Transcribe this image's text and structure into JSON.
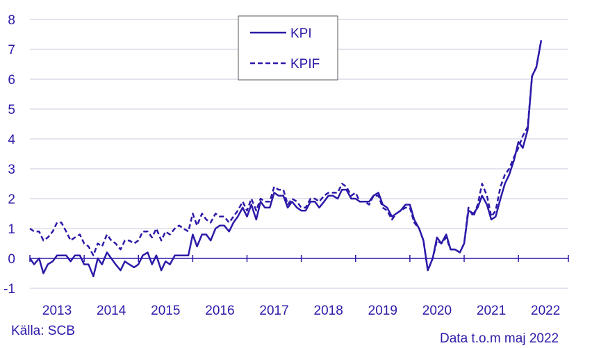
{
  "chart_data": {
    "type": "line",
    "title": "",
    "xlabel": "",
    "ylabel": "",
    "ylim": [
      -1,
      8
    ],
    "y_ticks": [
      -1,
      0,
      1,
      2,
      3,
      4,
      5,
      6,
      7,
      8
    ],
    "x_range": [
      2013,
      2022.92
    ],
    "x_ticks": [
      "2013",
      "2014",
      "2015",
      "2016",
      "2017",
      "2018",
      "2019",
      "2020",
      "2021",
      "2022"
    ],
    "grid": true,
    "legend_position": "top-center",
    "series": [
      {
        "name": "KPI",
        "style": "solid",
        "color": "#2b1aa8",
        "points": [
          [
            2013.0,
            0.0
          ],
          [
            2013.08,
            -0.2
          ],
          [
            2013.17,
            0.0
          ],
          [
            2013.25,
            -0.5
          ],
          [
            2013.33,
            -0.2
          ],
          [
            2013.42,
            -0.1
          ],
          [
            2013.5,
            0.1
          ],
          [
            2013.58,
            0.1
          ],
          [
            2013.67,
            0.1
          ],
          [
            2013.75,
            -0.1
          ],
          [
            2013.83,
            0.1
          ],
          [
            2013.92,
            0.1
          ],
          [
            2014.0,
            -0.2
          ],
          [
            2014.08,
            -0.2
          ],
          [
            2014.17,
            -0.6
          ],
          [
            2014.25,
            0.0
          ],
          [
            2014.33,
            -0.2
          ],
          [
            2014.42,
            0.2
          ],
          [
            2014.5,
            0.0
          ],
          [
            2014.58,
            -0.2
          ],
          [
            2014.67,
            -0.4
          ],
          [
            2014.75,
            -0.1
          ],
          [
            2014.83,
            -0.2
          ],
          [
            2014.92,
            -0.3
          ],
          [
            2015.0,
            -0.2
          ],
          [
            2015.08,
            0.1
          ],
          [
            2015.17,
            0.2
          ],
          [
            2015.25,
            -0.2
          ],
          [
            2015.33,
            0.1
          ],
          [
            2015.42,
            -0.4
          ],
          [
            2015.5,
            -0.1
          ],
          [
            2015.58,
            -0.2
          ],
          [
            2015.67,
            0.1
          ],
          [
            2015.75,
            0.1
          ],
          [
            2015.83,
            0.1
          ],
          [
            2015.92,
            0.1
          ],
          [
            2016.0,
            0.8
          ],
          [
            2016.08,
            0.4
          ],
          [
            2016.17,
            0.8
          ],
          [
            2016.25,
            0.8
          ],
          [
            2016.33,
            0.6
          ],
          [
            2016.42,
            1.0
          ],
          [
            2016.5,
            1.1
          ],
          [
            2016.58,
            1.1
          ],
          [
            2016.67,
            0.9
          ],
          [
            2016.75,
            1.2
          ],
          [
            2016.83,
            1.4
          ],
          [
            2016.92,
            1.7
          ],
          [
            2017.0,
            1.4
          ],
          [
            2017.08,
            1.8
          ],
          [
            2017.17,
            1.3
          ],
          [
            2017.25,
            1.9
          ],
          [
            2017.33,
            1.7
          ],
          [
            2017.42,
            1.7
          ],
          [
            2017.5,
            2.2
          ],
          [
            2017.58,
            2.1
          ],
          [
            2017.67,
            2.1
          ],
          [
            2017.75,
            1.7
          ],
          [
            2017.83,
            1.9
          ],
          [
            2017.92,
            1.7
          ],
          [
            2018.0,
            1.6
          ],
          [
            2018.08,
            1.6
          ],
          [
            2018.17,
            1.9
          ],
          [
            2018.25,
            1.9
          ],
          [
            2018.33,
            1.7
          ],
          [
            2018.42,
            1.9
          ],
          [
            2018.5,
            2.1
          ],
          [
            2018.58,
            2.1
          ],
          [
            2018.67,
            2.0
          ],
          [
            2018.75,
            2.3
          ],
          [
            2018.83,
            2.3
          ],
          [
            2018.92,
            2.0
          ],
          [
            2019.0,
            2.0
          ],
          [
            2019.08,
            1.9
          ],
          [
            2019.17,
            1.9
          ],
          [
            2019.25,
            1.9
          ],
          [
            2019.33,
            2.1
          ],
          [
            2019.42,
            2.2
          ],
          [
            2019.5,
            1.8
          ],
          [
            2019.58,
            1.7
          ],
          [
            2019.67,
            1.4
          ],
          [
            2019.75,
            1.5
          ],
          [
            2019.83,
            1.6
          ],
          [
            2019.92,
            1.8
          ],
          [
            2020.0,
            1.8
          ],
          [
            2020.08,
            1.3
          ],
          [
            2020.17,
            1.0
          ],
          [
            2020.25,
            0.6
          ],
          [
            2020.33,
            -0.4
          ],
          [
            2020.42,
            0.0
          ],
          [
            2020.5,
            0.7
          ],
          [
            2020.58,
            0.5
          ],
          [
            2020.67,
            0.8
          ],
          [
            2020.75,
            0.3
          ],
          [
            2020.83,
            0.3
          ],
          [
            2020.92,
            0.2
          ],
          [
            2021.0,
            0.5
          ],
          [
            2021.08,
            1.6
          ],
          [
            2021.17,
            1.5
          ],
          [
            2021.25,
            1.7
          ],
          [
            2021.33,
            2.1
          ],
          [
            2021.42,
            1.8
          ],
          [
            2021.5,
            1.3
          ],
          [
            2021.58,
            1.4
          ],
          [
            2021.67,
            2.0
          ],
          [
            2021.75,
            2.5
          ],
          [
            2021.83,
            2.8
          ],
          [
            2021.92,
            3.3
          ],
          [
            2022.0,
            3.9
          ],
          [
            2022.08,
            3.7
          ],
          [
            2022.17,
            4.3
          ],
          [
            2022.25,
            6.1
          ],
          [
            2022.33,
            6.4
          ],
          [
            2022.42,
            7.3
          ]
        ]
      },
      {
        "name": "KPIF",
        "style": "dashed",
        "color": "#2b1aa8",
        "points": [
          [
            2013.0,
            1.0
          ],
          [
            2013.08,
            0.9
          ],
          [
            2013.17,
            0.9
          ],
          [
            2013.25,
            0.6
          ],
          [
            2013.33,
            0.7
          ],
          [
            2013.42,
            0.9
          ],
          [
            2013.5,
            1.2
          ],
          [
            2013.58,
            1.2
          ],
          [
            2013.67,
            0.9
          ],
          [
            2013.75,
            0.6
          ],
          [
            2013.83,
            0.7
          ],
          [
            2013.92,
            0.8
          ],
          [
            2014.0,
            0.5
          ],
          [
            2014.08,
            0.4
          ],
          [
            2014.17,
            0.1
          ],
          [
            2014.25,
            0.5
          ],
          [
            2014.33,
            0.4
          ],
          [
            2014.42,
            0.8
          ],
          [
            2014.5,
            0.6
          ],
          [
            2014.58,
            0.5
          ],
          [
            2014.67,
            0.3
          ],
          [
            2014.75,
            0.6
          ],
          [
            2014.83,
            0.6
          ],
          [
            2014.92,
            0.5
          ],
          [
            2015.0,
            0.6
          ],
          [
            2015.08,
            0.9
          ],
          [
            2015.17,
            0.9
          ],
          [
            2015.25,
            0.7
          ],
          [
            2015.33,
            1.0
          ],
          [
            2015.42,
            0.6
          ],
          [
            2015.5,
            0.9
          ],
          [
            2015.58,
            0.8
          ],
          [
            2015.67,
            1.0
          ],
          [
            2015.75,
            1.1
          ],
          [
            2015.83,
            1.0
          ],
          [
            2015.92,
            0.9
          ],
          [
            2016.0,
            1.5
          ],
          [
            2016.08,
            1.1
          ],
          [
            2016.17,
            1.5
          ],
          [
            2016.25,
            1.3
          ],
          [
            2016.33,
            1.2
          ],
          [
            2016.42,
            1.5
          ],
          [
            2016.5,
            1.4
          ],
          [
            2016.58,
            1.4
          ],
          [
            2016.67,
            1.2
          ],
          [
            2016.75,
            1.4
          ],
          [
            2016.83,
            1.6
          ],
          [
            2016.92,
            1.9
          ],
          [
            2017.0,
            1.6
          ],
          [
            2017.08,
            2.0
          ],
          [
            2017.17,
            1.6
          ],
          [
            2017.25,
            2.0
          ],
          [
            2017.33,
            1.9
          ],
          [
            2017.42,
            1.9
          ],
          [
            2017.5,
            2.4
          ],
          [
            2017.58,
            2.3
          ],
          [
            2017.67,
            2.3
          ],
          [
            2017.75,
            1.8
          ],
          [
            2017.83,
            2.0
          ],
          [
            2017.92,
            1.9
          ],
          [
            2018.0,
            1.7
          ],
          [
            2018.08,
            1.7
          ],
          [
            2018.17,
            2.0
          ],
          [
            2018.25,
            2.0
          ],
          [
            2018.33,
            1.9
          ],
          [
            2018.42,
            2.1
          ],
          [
            2018.5,
            2.2
          ],
          [
            2018.58,
            2.2
          ],
          [
            2018.67,
            2.2
          ],
          [
            2018.75,
            2.5
          ],
          [
            2018.83,
            2.4
          ],
          [
            2018.92,
            2.1
          ],
          [
            2019.0,
            2.2
          ],
          [
            2019.08,
            1.9
          ],
          [
            2019.17,
            1.9
          ],
          [
            2019.25,
            1.8
          ],
          [
            2019.33,
            2.1
          ],
          [
            2019.42,
            2.1
          ],
          [
            2019.5,
            1.7
          ],
          [
            2019.58,
            1.6
          ],
          [
            2019.67,
            1.3
          ],
          [
            2019.75,
            1.5
          ],
          [
            2019.83,
            1.6
          ],
          [
            2019.92,
            1.7
          ],
          [
            2020.0,
            1.7
          ],
          [
            2020.08,
            1.2
          ],
          [
            2020.17,
            1.0
          ],
          [
            2020.25,
            0.6
          ],
          [
            2020.33,
            -0.4
          ],
          [
            2020.42,
            0.0
          ],
          [
            2020.5,
            0.6
          ],
          [
            2020.58,
            0.5
          ],
          [
            2020.67,
            0.7
          ],
          [
            2020.75,
            0.3
          ],
          [
            2020.83,
            0.3
          ],
          [
            2020.92,
            0.2
          ],
          [
            2021.0,
            0.5
          ],
          [
            2021.08,
            1.7
          ],
          [
            2021.17,
            1.4
          ],
          [
            2021.25,
            1.8
          ],
          [
            2021.33,
            2.5
          ],
          [
            2021.42,
            2.1
          ],
          [
            2021.5,
            1.4
          ],
          [
            2021.58,
            1.6
          ],
          [
            2021.67,
            2.4
          ],
          [
            2021.75,
            2.8
          ],
          [
            2021.83,
            3.0
          ],
          [
            2021.92,
            3.4
          ],
          [
            2022.0,
            3.7
          ],
          [
            2022.08,
            4.1
          ],
          [
            2022.17,
            4.4
          ],
          [
            2022.25,
            6.1
          ],
          [
            2022.33,
            6.4
          ],
          [
            2022.42,
            7.3
          ]
        ]
      }
    ]
  },
  "footer": {
    "source": "Källa: SCB",
    "date_note": "Data t.o.m maj 2022"
  }
}
